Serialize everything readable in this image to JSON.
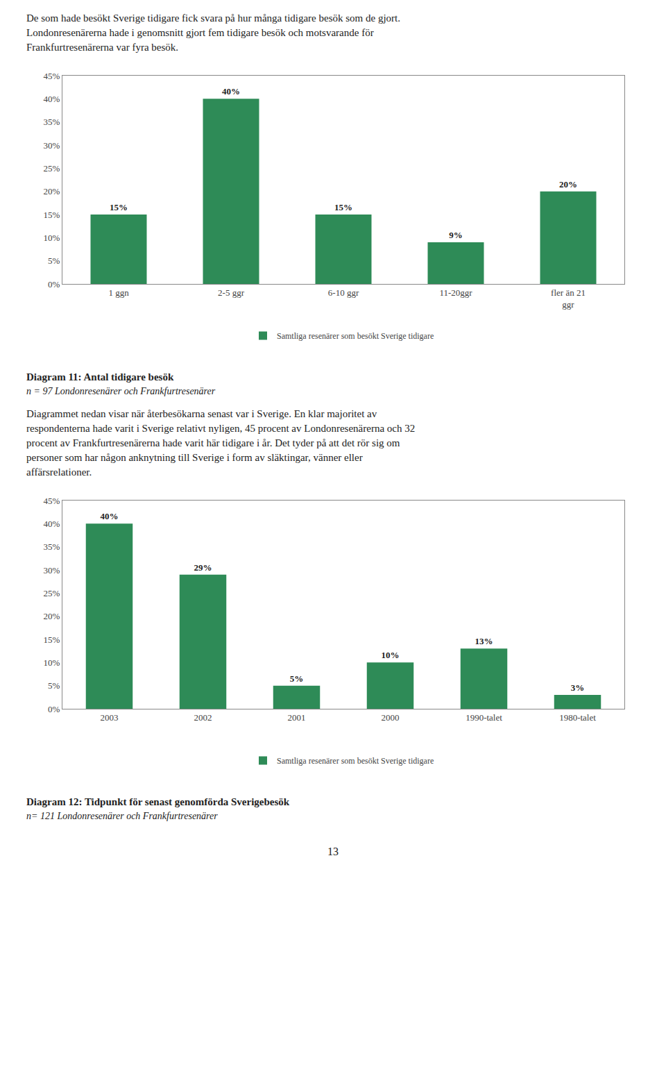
{
  "chart_data": [
    {
      "type": "bar",
      "title": "Diagram 11: Antal tidigare besök",
      "subtitle": "n = 97 Londonresenärer och Frankfurtresenärer",
      "categories": [
        "1 ggn",
        "2-5 ggr",
        "6-10 ggr",
        "11-20ggr",
        "fler än 21\nggr"
      ],
      "series": [
        {
          "name": "Samtliga resenärer som besökt Sverige tidigare",
          "color": "#2e8b57",
          "values": [
            15,
            40,
            15,
            9,
            20
          ],
          "value_labels": [
            "15%",
            "40%",
            "15%",
            "9%",
            "20%"
          ]
        }
      ],
      "ylim": [
        0,
        45
      ],
      "yticks": [
        {
          "value": 0,
          "label": "0%"
        },
        {
          "value": 5,
          "label": "5%"
        },
        {
          "value": 10,
          "label": "10%"
        },
        {
          "value": 15,
          "label": "15%"
        },
        {
          "value": 20,
          "label": "20%"
        },
        {
          "value": 25,
          "label": "25%"
        },
        {
          "value": 30,
          "label": "30%"
        },
        {
          "value": 35,
          "label": "35%"
        },
        {
          "value": 40,
          "label": "40%"
        },
        {
          "value": 45,
          "label": "45%"
        }
      ],
      "data_labels": true,
      "grid": false,
      "legend": "bottom"
    },
    {
      "type": "bar",
      "title": "Diagram 12: Tidpunkt för senast genomförda Sverigebesök",
      "subtitle": "n= 121 Londonresenärer och Frankfurtresenärer",
      "categories": [
        "2003",
        "2002",
        "2001",
        "2000",
        "1990-talet",
        "1980-talet"
      ],
      "series": [
        {
          "name": "Samtliga resenärer som besökt Sverige tidigare",
          "color": "#2e8b57",
          "values": [
            40,
            29,
            5,
            10,
            13,
            3
          ],
          "value_labels": [
            "40%",
            "29%",
            "5%",
            "10%",
            "13%",
            "3%"
          ]
        }
      ],
      "ylim": [
        0,
        45
      ],
      "yticks": [
        {
          "value": 0,
          "label": "0%"
        },
        {
          "value": 5,
          "label": "5%"
        },
        {
          "value": 10,
          "label": "10%"
        },
        {
          "value": 15,
          "label": "15%"
        },
        {
          "value": 20,
          "label": "20%"
        },
        {
          "value": 25,
          "label": "25%"
        },
        {
          "value": 30,
          "label": "30%"
        },
        {
          "value": 35,
          "label": "35%"
        },
        {
          "value": 40,
          "label": "40%"
        },
        {
          "value": 45,
          "label": "45%"
        }
      ],
      "data_labels": true,
      "grid": false,
      "legend": "bottom"
    }
  ],
  "annotations": {
    "intro": [
      "De som hade besökt Sverige tidigare fick svara på hur många tidigare besök som de gjort.",
      "Londonresenärerna hade i genomsnitt gjort fem tidigare besök och motsvarande för",
      "Frankfurtresenärerna var fyra besök."
    ],
    "middle": [
      "Diagrammet nedan visar när återbesökarna senast var i Sverige. En klar majoritet av",
      "respondenterna hade varit i Sverige relativt nyligen, 45 procent av Londonresenärerna och 32",
      "procent av Frankfurtresenärerna hade varit här tidigare i år. Det tyder på att det rör sig om",
      "personer som har någon anknytning till Sverige i form av släktingar, vänner eller",
      "affärsrelationer."
    ],
    "page_number": "13"
  }
}
